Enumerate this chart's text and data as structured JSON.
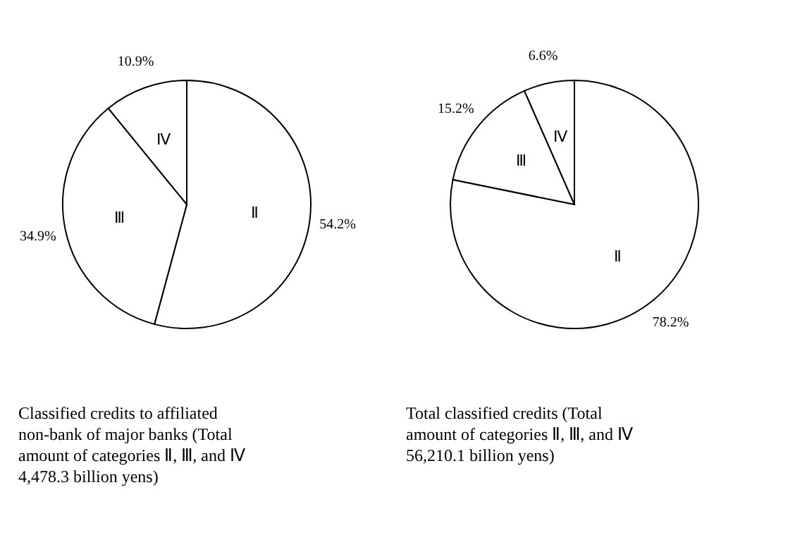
{
  "chart_data": [
    {
      "type": "pie",
      "categories": [
        "Ⅱ",
        "Ⅲ",
        "Ⅳ"
      ],
      "values": [
        54.2,
        34.9,
        10.9
      ],
      "value_labels": [
        "54.2%",
        "34.9%",
        "10.9%"
      ],
      "colors": [
        "#ffffff",
        "#ffffff",
        "#ffffff"
      ],
      "annotations": [
        "Classified credits to affiliated non-bank of major banks (Total amount of categories Ⅱ, Ⅲ, and Ⅳ 4,478.3 billion yens)"
      ]
    },
    {
      "type": "pie",
      "categories": [
        "Ⅱ",
        "Ⅲ",
        "Ⅳ"
      ],
      "values": [
        78.2,
        15.2,
        6.6
      ],
      "value_labels": [
        "78.2%",
        "15.2%",
        "6.6%"
      ],
      "colors": [
        "#ffffff",
        "#ffffff",
        "#ffffff"
      ],
      "annotations": [
        "Total classified credits (Total amount of categories Ⅱ, Ⅲ, and Ⅳ 56,210.1 billion yens)"
      ]
    }
  ]
}
